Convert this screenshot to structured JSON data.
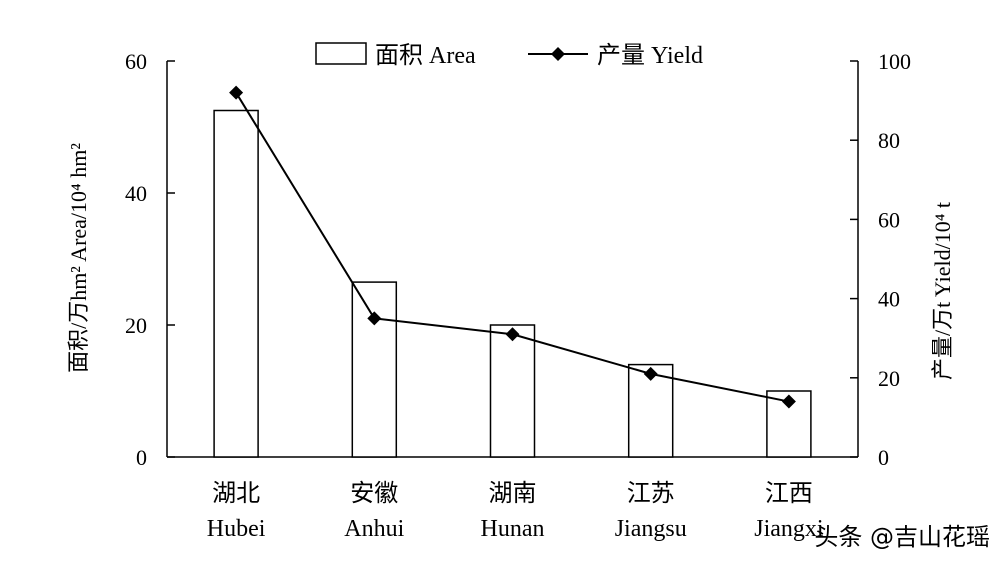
{
  "chart_data": {
    "type": "bar+line",
    "categories": [
      "湖北\nHubei",
      "安徽\nAnhui",
      "湖南\nHunan",
      "江苏\nJiangsu",
      "江西\nJiangxi"
    ],
    "series": [
      {
        "name": "面积 Area",
        "type": "bar",
        "axis": "left",
        "values": [
          52.5,
          26.5,
          20.0,
          14.0,
          10.0
        ]
      },
      {
        "name": "产量 Yield",
        "type": "line",
        "axis": "right",
        "values": [
          92,
          35,
          31,
          21,
          14
        ]
      }
    ],
    "y_left": {
      "label": "面积/万hm² Area/10⁴ hm²",
      "lim": [
        0,
        60
      ],
      "ticks": [
        "0",
        "20",
        "40",
        "60"
      ]
    },
    "y_right": {
      "label": "产量/万t Yield/10⁴ t",
      "lim": [
        0,
        100
      ],
      "ticks": [
        "0",
        "20",
        "40",
        "60",
        "80",
        "100"
      ]
    },
    "legend_position": "top-center",
    "grid": false
  },
  "watermark": "头条 @吉山花瑶"
}
